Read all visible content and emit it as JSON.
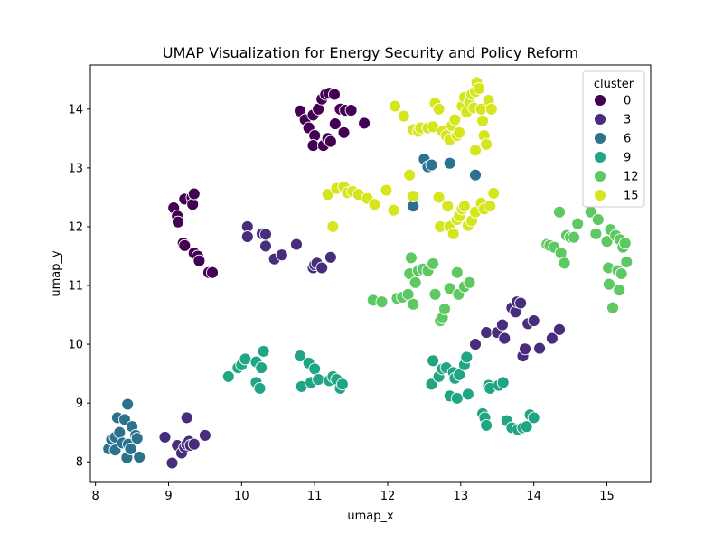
{
  "chart_data": {
    "type": "scatter",
    "title": "UMAP Visualization for Energy Security and Policy Reform",
    "xlabel": "umap_x",
    "ylabel": "umap_y",
    "xlim": [
      7.93,
      15.6
    ],
    "ylim": [
      7.65,
      14.75
    ],
    "xticks": [
      8,
      9,
      10,
      11,
      12,
      13,
      14,
      15
    ],
    "yticks": [
      8,
      9,
      10,
      11,
      12,
      13,
      14
    ],
    "grid": false,
    "legend": {
      "title": "cluster",
      "placement": "top-right",
      "entries": [
        {
          "label": "0",
          "color": "#440154"
        },
        {
          "label": "3",
          "color": "#472d7b"
        },
        {
          "label": "6",
          "color": "#2c728e"
        },
        {
          "label": "9",
          "color": "#21a685"
        },
        {
          "label": "12",
          "color": "#5ec962"
        },
        {
          "label": "15",
          "color": "#d6e61e"
        }
      ]
    },
    "series": [
      {
        "color": "#440154",
        "points": [
          [
            10.8,
            13.97
          ],
          [
            10.87,
            13.82
          ],
          [
            10.92,
            13.68
          ],
          [
            10.98,
            13.9
          ],
          [
            11.0,
            13.55
          ],
          [
            10.98,
            13.38
          ],
          [
            11.05,
            14.0
          ],
          [
            11.1,
            14.17
          ],
          [
            11.15,
            14.25
          ],
          [
            11.2,
            14.27
          ],
          [
            11.27,
            14.25
          ],
          [
            11.12,
            13.38
          ],
          [
            11.18,
            13.5
          ],
          [
            11.22,
            13.45
          ],
          [
            11.28,
            13.75
          ],
          [
            11.35,
            14.0
          ],
          [
            11.4,
            13.6
          ],
          [
            11.42,
            13.98
          ],
          [
            11.5,
            13.98
          ],
          [
            11.68,
            13.76
          ],
          [
            9.07,
            12.32
          ],
          [
            9.12,
            12.18
          ],
          [
            9.13,
            12.08
          ],
          [
            9.22,
            12.47
          ],
          [
            9.2,
            11.72
          ],
          [
            9.22,
            11.68
          ],
          [
            9.32,
            12.5
          ],
          [
            9.33,
            12.38
          ],
          [
            9.35,
            12.56
          ],
          [
            9.35,
            11.55
          ],
          [
            9.4,
            11.5
          ],
          [
            9.42,
            11.42
          ],
          [
            9.55,
            11.22
          ],
          [
            9.6,
            11.22
          ]
        ]
      },
      {
        "color": "#472d7b",
        "points": [
          [
            10.08,
            12.0
          ],
          [
            10.08,
            11.83
          ],
          [
            10.28,
            11.88
          ],
          [
            10.33,
            11.87
          ],
          [
            10.33,
            11.67
          ],
          [
            10.45,
            11.45
          ],
          [
            10.55,
            11.52
          ],
          [
            10.75,
            11.7
          ],
          [
            10.98,
            11.3
          ],
          [
            11.0,
            11.35
          ],
          [
            11.03,
            11.38
          ],
          [
            11.1,
            11.3
          ],
          [
            11.22,
            11.48
          ],
          [
            13.2,
            10.0
          ],
          [
            13.35,
            10.2
          ],
          [
            13.5,
            10.2
          ],
          [
            13.57,
            10.33
          ],
          [
            13.6,
            10.1
          ],
          [
            13.7,
            10.62
          ],
          [
            13.75,
            10.55
          ],
          [
            13.77,
            10.72
          ],
          [
            13.82,
            10.7
          ],
          [
            13.85,
            9.8
          ],
          [
            13.88,
            9.92
          ],
          [
            13.92,
            10.35
          ],
          [
            14.0,
            10.4
          ],
          [
            14.08,
            9.93
          ],
          [
            14.25,
            10.1
          ],
          [
            14.35,
            10.25
          ],
          [
            8.95,
            8.42
          ],
          [
            9.05,
            7.98
          ],
          [
            9.12,
            8.28
          ],
          [
            9.18,
            8.15
          ],
          [
            9.22,
            8.25
          ],
          [
            9.25,
            8.3
          ],
          [
            9.28,
            8.35
          ],
          [
            9.3,
            8.28
          ],
          [
            9.35,
            8.3
          ],
          [
            9.5,
            8.45
          ],
          [
            9.25,
            8.75
          ]
        ]
      },
      {
        "color": "#2c728e",
        "points": [
          [
            8.18,
            8.22
          ],
          [
            8.22,
            8.38
          ],
          [
            8.27,
            8.42
          ],
          [
            8.27,
            8.2
          ],
          [
            8.3,
            8.75
          ],
          [
            8.33,
            8.5
          ],
          [
            8.37,
            8.32
          ],
          [
            8.4,
            8.72
          ],
          [
            8.43,
            8.07
          ],
          [
            8.45,
            8.3
          ],
          [
            8.48,
            8.22
          ],
          [
            8.5,
            8.6
          ],
          [
            8.55,
            8.45
          ],
          [
            8.57,
            8.4
          ],
          [
            8.6,
            8.08
          ],
          [
            8.44,
            8.98
          ],
          [
            12.5,
            13.15
          ],
          [
            12.55,
            13.02
          ],
          [
            12.6,
            13.05
          ],
          [
            12.85,
            13.08
          ],
          [
            13.2,
            12.88
          ],
          [
            12.35,
            12.35
          ]
        ]
      },
      {
        "color": "#21a685",
        "points": [
          [
            9.82,
            9.45
          ],
          [
            9.95,
            9.6
          ],
          [
            10.0,
            9.65
          ],
          [
            10.05,
            9.75
          ],
          [
            10.2,
            9.7
          ],
          [
            10.2,
            9.35
          ],
          [
            10.25,
            9.25
          ],
          [
            10.27,
            9.6
          ],
          [
            10.3,
            9.88
          ],
          [
            10.8,
            9.8
          ],
          [
            10.82,
            9.28
          ],
          [
            10.92,
            9.68
          ],
          [
            10.95,
            9.35
          ],
          [
            11.0,
            9.58
          ],
          [
            11.05,
            9.4
          ],
          [
            11.2,
            9.38
          ],
          [
            11.25,
            9.45
          ],
          [
            11.3,
            9.4
          ],
          [
            11.35,
            9.25
          ],
          [
            11.38,
            9.32
          ],
          [
            12.6,
            9.32
          ],
          [
            12.62,
            9.72
          ],
          [
            12.7,
            9.45
          ],
          [
            12.75,
            9.58
          ],
          [
            12.8,
            9.6
          ],
          [
            12.85,
            9.12
          ],
          [
            12.9,
            9.52
          ],
          [
            12.92,
            9.42
          ],
          [
            12.95,
            9.08
          ],
          [
            12.98,
            9.48
          ],
          [
            13.05,
            9.65
          ],
          [
            13.08,
            9.78
          ],
          [
            13.1,
            9.15
          ],
          [
            13.3,
            8.82
          ],
          [
            13.33,
            8.75
          ],
          [
            13.35,
            8.62
          ],
          [
            13.38,
            9.3
          ],
          [
            13.4,
            9.25
          ],
          [
            13.52,
            9.3
          ],
          [
            13.58,
            9.35
          ],
          [
            13.63,
            8.7
          ],
          [
            13.7,
            8.58
          ],
          [
            13.78,
            8.55
          ],
          [
            13.85,
            8.58
          ],
          [
            13.9,
            8.6
          ],
          [
            13.95,
            8.8
          ],
          [
            14.0,
            8.75
          ]
        ]
      },
      {
        "color": "#5ec962",
        "points": [
          [
            11.8,
            10.75
          ],
          [
            11.92,
            10.72
          ],
          [
            12.13,
            10.78
          ],
          [
            12.2,
            10.8
          ],
          [
            12.28,
            10.85
          ],
          [
            12.3,
            11.2
          ],
          [
            12.32,
            11.47
          ],
          [
            12.38,
            11.05
          ],
          [
            12.35,
            10.68
          ],
          [
            12.42,
            11.25
          ],
          [
            12.48,
            11.28
          ],
          [
            12.55,
            11.25
          ],
          [
            12.62,
            11.37
          ],
          [
            12.65,
            10.85
          ],
          [
            12.72,
            10.4
          ],
          [
            12.75,
            10.45
          ],
          [
            12.78,
            10.6
          ],
          [
            12.85,
            10.95
          ],
          [
            12.95,
            11.22
          ],
          [
            12.97,
            10.85
          ],
          [
            13.05,
            10.98
          ],
          [
            13.12,
            11.05
          ],
          [
            14.18,
            11.7
          ],
          [
            14.22,
            11.68
          ],
          [
            14.28,
            11.65
          ],
          [
            14.35,
            12.25
          ],
          [
            14.37,
            11.55
          ],
          [
            14.42,
            11.38
          ],
          [
            14.45,
            11.85
          ],
          [
            14.5,
            11.82
          ],
          [
            14.55,
            11.82
          ],
          [
            14.6,
            12.05
          ],
          [
            14.78,
            12.25
          ],
          [
            14.85,
            11.88
          ],
          [
            14.88,
            12.12
          ],
          [
            15.0,
            11.75
          ],
          [
            15.02,
            11.3
          ],
          [
            15.03,
            11.02
          ],
          [
            15.05,
            11.95
          ],
          [
            15.08,
            10.62
          ],
          [
            15.12,
            11.85
          ],
          [
            15.15,
            11.25
          ],
          [
            15.17,
            10.92
          ],
          [
            15.18,
            11.78
          ],
          [
            15.2,
            11.2
          ],
          [
            15.22,
            11.65
          ],
          [
            15.25,
            11.72
          ],
          [
            15.27,
            11.4
          ]
        ]
      },
      {
        "color": "#d6e61e",
        "points": [
          [
            12.1,
            14.05
          ],
          [
            12.22,
            13.88
          ],
          [
            12.35,
            13.65
          ],
          [
            12.42,
            13.62
          ],
          [
            12.45,
            13.68
          ],
          [
            12.55,
            13.68
          ],
          [
            12.62,
            13.7
          ],
          [
            12.65,
            14.1
          ],
          [
            12.7,
            14.0
          ],
          [
            12.75,
            13.62
          ],
          [
            12.8,
            13.55
          ],
          [
            12.85,
            13.48
          ],
          [
            12.88,
            13.72
          ],
          [
            12.92,
            13.82
          ],
          [
            12.95,
            13.55
          ],
          [
            12.98,
            13.6
          ],
          [
            13.02,
            14.05
          ],
          [
            13.05,
            14.2
          ],
          [
            13.08,
            13.95
          ],
          [
            13.12,
            14.12
          ],
          [
            13.15,
            14.25
          ],
          [
            13.18,
            14.02
          ],
          [
            13.2,
            14.3
          ],
          [
            13.22,
            14.45
          ],
          [
            13.25,
            14.35
          ],
          [
            13.28,
            14.0
          ],
          [
            13.3,
            13.8
          ],
          [
            13.32,
            13.55
          ],
          [
            13.35,
            13.4
          ],
          [
            13.38,
            14.15
          ],
          [
            13.42,
            14.0
          ],
          [
            13.2,
            13.3
          ],
          [
            11.18,
            12.55
          ],
          [
            11.3,
            12.65
          ],
          [
            11.4,
            12.68
          ],
          [
            11.45,
            12.58
          ],
          [
            11.52,
            12.6
          ],
          [
            11.6,
            12.55
          ],
          [
            11.72,
            12.48
          ],
          [
            11.82,
            12.38
          ],
          [
            11.98,
            12.62
          ],
          [
            12.08,
            12.28
          ],
          [
            12.35,
            12.52
          ],
          [
            12.3,
            12.88
          ],
          [
            11.25,
            12.0
          ],
          [
            12.7,
            12.5
          ],
          [
            12.72,
            12.0
          ],
          [
            12.82,
            12.35
          ],
          [
            12.85,
            12.0
          ],
          [
            12.9,
            11.88
          ],
          [
            12.95,
            12.12
          ],
          [
            12.98,
            12.18
          ],
          [
            13.02,
            12.3
          ],
          [
            13.05,
            12.35
          ],
          [
            13.1,
            12.02
          ],
          [
            13.15,
            12.1
          ],
          [
            13.2,
            12.25
          ],
          [
            13.28,
            12.4
          ],
          [
            13.32,
            12.3
          ],
          [
            13.4,
            12.35
          ],
          [
            13.45,
            12.57
          ]
        ]
      }
    ]
  }
}
